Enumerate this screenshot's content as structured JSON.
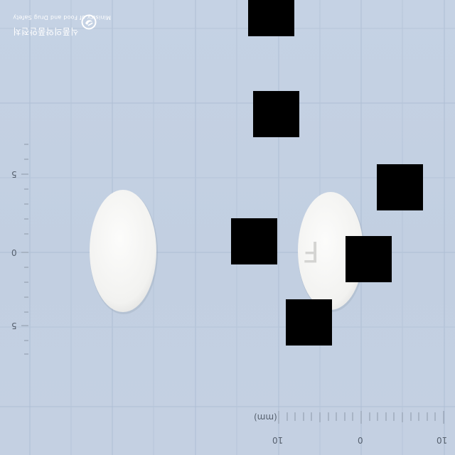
{
  "watermark": {
    "line_english": "Ministry of Food and Drug Safety",
    "line_korean": "식품의약품안전처",
    "emblem_icon": "government-emblem-icon"
  },
  "scale": {
    "unit_label": "(mm)",
    "left_ruler_labels": [
      "5",
      "0",
      "5"
    ],
    "bottom_ruler_labels": [
      "10",
      "0",
      "10"
    ]
  },
  "pills": {
    "left": {
      "shape": "oval",
      "color": "#f7f7f5",
      "imprint": ""
    },
    "right": {
      "shape": "oval",
      "color": "#f7f7f5",
      "imprint": "F"
    }
  },
  "colors": {
    "background": "#c4d1e3",
    "grid": "#adbdd3",
    "redaction": "#000000"
  }
}
